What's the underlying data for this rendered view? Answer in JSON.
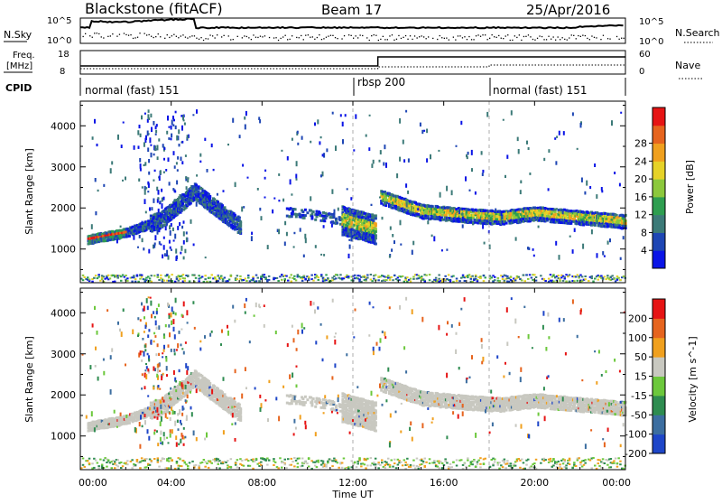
{
  "header": {
    "station": "Blackstone (fitACF)",
    "beam": "Beam 17",
    "date": "25/Apr/2016"
  },
  "noise_panel": {
    "left_label": "N.Sky",
    "right_label": "N.Search",
    "left_ticks": [
      "10^5",
      "10^0"
    ],
    "right_ticks": [
      "10^5",
      "10^0"
    ]
  },
  "freq_panel": {
    "left_label_1": "Freq.",
    "left_label_2": "[MHz]",
    "right_label": "Nave",
    "left_ticks": [
      "18",
      "8"
    ],
    "right_ticks": [
      "60",
      "0"
    ]
  },
  "cpid_panel": {
    "label": "CPID",
    "segments": [
      {
        "name": "normal (fast) 151",
        "start_hour": 0
      },
      {
        "name": "rbsp 200",
        "start_hour": 12
      },
      {
        "name": "normal (fast) 151",
        "start_hour": 18
      }
    ]
  },
  "x_axis": {
    "label": "Time UT",
    "ticks": [
      "00:00",
      "04:00",
      "08:00",
      "12:00",
      "16:00",
      "20:00",
      "00:00"
    ]
  },
  "chart_data": [
    {
      "type": "heatmap",
      "title": "Power",
      "ylabel": "Slant Range [km]",
      "yticks": [
        1000,
        2000,
        3000,
        4000
      ],
      "ylim": [
        180,
        4600
      ],
      "xlim_hours": [
        0,
        24
      ],
      "colorbar": {
        "label": "Power [dB]",
        "ticks": [
          "4",
          "8",
          "12",
          "16",
          "20",
          "24",
          "28"
        ],
        "colors": [
          "#0a14e6",
          "#1e46b4",
          "#3c7a78",
          "#2e9e50",
          "#8cc83c",
          "#e6d228",
          "#f0a01e",
          "#e6641e",
          "#e61414"
        ]
      },
      "bands": [
        {
          "description": "main scatter band",
          "points": [
            [
              0.3,
              1280
            ],
            [
              2,
              1450
            ],
            [
              3.5,
              1750
            ],
            [
              4.5,
              2200
            ],
            [
              5,
              2450
            ],
            [
              6,
              2000
            ],
            [
              7,
              1600
            ]
          ]
        },
        {
          "description": "mid-day echoes",
          "points": [
            [
              9,
              1950
            ],
            [
              10,
              1900
            ],
            [
              11,
              1800
            ],
            [
              12,
              1650
            ],
            [
              13,
              1500
            ]
          ]
        },
        {
          "description": "afternoon band",
          "points": [
            [
              13.2,
              2300
            ],
            [
              15,
              1950
            ],
            [
              17,
              1850
            ],
            [
              18.5,
              1800
            ],
            [
              20,
              1900
            ],
            [
              22,
              1800
            ],
            [
              24,
              1700
            ]
          ]
        }
      ]
    },
    {
      "type": "heatmap",
      "title": "Velocity",
      "ylabel": "Slant Range [km]",
      "yticks": [
        1000,
        2000,
        3000,
        4000
      ],
      "ylim": [
        180,
        4600
      ],
      "xlim_hours": [
        0,
        24
      ],
      "colorbar": {
        "label": "Velocity [m s^-1]",
        "ticks": [
          "200",
          "100",
          "50",
          "15",
          "-15",
          "-50",
          "-100",
          "-200"
        ],
        "colors": [
          "#1e46c8",
          "#3c6ea0",
          "#2e8c50",
          "#6cc83c",
          "#c8c8c0",
          "#f0a01e",
          "#e6641e",
          "#e61414"
        ]
      }
    }
  ]
}
